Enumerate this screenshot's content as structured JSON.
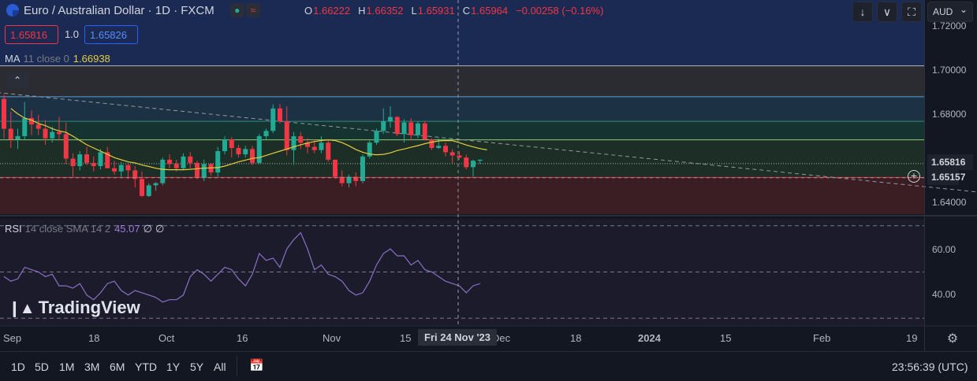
{
  "header": {
    "title": "Euro / Australian Dollar · 1D · FXCM",
    "ohlc": [
      {
        "k": "O",
        "v": "1.66222"
      },
      {
        "k": "H",
        "v": "1.66352"
      },
      {
        "k": "L",
        "v": "1.65931"
      },
      {
        "k": "C",
        "v": "1.65964"
      },
      {
        "k": "",
        "v": "−0.00258 (−0.16%)"
      }
    ],
    "sell_price": "1.65816",
    "spread": "1.0",
    "buy_price": "1.65826",
    "currency": "AUD"
  },
  "ma_legend": {
    "name": "MA",
    "params": "11 close 0",
    "value": "1.66938"
  },
  "rsi_legend": {
    "name": "RSI",
    "params": "14 close SMA 14 2",
    "value": "45.07",
    "na1": "∅",
    "na2": "∅"
  },
  "watermark": "TradingView",
  "price_axis": {
    "ticks": [
      "1.72000",
      "1.70000",
      "1.68000",
      "1.64000"
    ],
    "current_label": "1.65816",
    "cross_label": "1.65157"
  },
  "rsi_axis": {
    "ticks": [
      "60.00",
      "40.00"
    ]
  },
  "time_axis": {
    "ticks": [
      "Sep",
      "18",
      "Oct",
      "16",
      "Nov",
      "15",
      "Dec",
      "18",
      "2024",
      "15",
      "Feb",
      "19"
    ],
    "crosshair_label": "Fri 24 Nov '23"
  },
  "bottom_bar": {
    "timeframes": [
      "1D",
      "5D",
      "1M",
      "3M",
      "6M",
      "YTD",
      "1Y",
      "5Y",
      "All"
    ],
    "clock": "23:56:39 (UTC)"
  },
  "icons": [
    "flag-icon",
    "down-arrow-icon",
    "collapse-icon",
    "fullscreen-icon",
    "calendar-icon",
    "settings-icon",
    "crosshair-plus-icon",
    "chevron-up-icon"
  ],
  "colors": {
    "up": "#22ab94",
    "down": "#f23645",
    "ma": "#e4ce3e",
    "rsi": "#8b6fc4",
    "bg": "#131722"
  },
  "chart_data": [
    {
      "type": "candlestick",
      "title": "Euro / Australian Dollar · 1D · FXCM",
      "ylim": [
        1.6345,
        1.7245
      ],
      "candles": [
        {
          "o": 1.6885,
          "h": 1.6905,
          "l": 1.67,
          "c": 1.6745
        },
        {
          "o": 1.6745,
          "h": 1.6825,
          "l": 1.6655,
          "c": 1.6695
        },
        {
          "o": 1.6695,
          "h": 1.6745,
          "l": 1.665,
          "c": 1.671
        },
        {
          "o": 1.671,
          "h": 1.687,
          "l": 1.6695,
          "c": 1.6795
        },
        {
          "o": 1.6795,
          "h": 1.683,
          "l": 1.6715,
          "c": 1.6765
        },
        {
          "o": 1.6765,
          "h": 1.681,
          "l": 1.6715,
          "c": 1.6745
        },
        {
          "o": 1.6745,
          "h": 1.6785,
          "l": 1.667,
          "c": 1.67
        },
        {
          "o": 1.67,
          "h": 1.6755,
          "l": 1.668,
          "c": 1.673
        },
        {
          "o": 1.673,
          "h": 1.68,
          "l": 1.669,
          "c": 1.672
        },
        {
          "o": 1.672,
          "h": 1.6775,
          "l": 1.658,
          "c": 1.6605
        },
        {
          "o": 1.6605,
          "h": 1.663,
          "l": 1.652,
          "c": 1.657
        },
        {
          "o": 1.657,
          "h": 1.664,
          "l": 1.655,
          "c": 1.6625
        },
        {
          "o": 1.6625,
          "h": 1.666,
          "l": 1.6575,
          "c": 1.6585
        },
        {
          "o": 1.6585,
          "h": 1.6615,
          "l": 1.6545,
          "c": 1.657
        },
        {
          "o": 1.657,
          "h": 1.665,
          "l": 1.6555,
          "c": 1.6635
        },
        {
          "o": 1.6635,
          "h": 1.666,
          "l": 1.656,
          "c": 1.656
        },
        {
          "o": 1.656,
          "h": 1.6595,
          "l": 1.653,
          "c": 1.6545
        },
        {
          "o": 1.6545,
          "h": 1.659,
          "l": 1.652,
          "c": 1.6575
        },
        {
          "o": 1.6575,
          "h": 1.658,
          "l": 1.651,
          "c": 1.655
        },
        {
          "o": 1.655,
          "h": 1.657,
          "l": 1.647,
          "c": 1.651
        },
        {
          "o": 1.651,
          "h": 1.6545,
          "l": 1.6425,
          "c": 1.643
        },
        {
          "o": 1.643,
          "h": 1.649,
          "l": 1.6425,
          "c": 1.648
        },
        {
          "o": 1.648,
          "h": 1.6495,
          "l": 1.6455,
          "c": 1.649
        },
        {
          "o": 1.649,
          "h": 1.661,
          "l": 1.648,
          "c": 1.66
        },
        {
          "o": 1.66,
          "h": 1.6625,
          "l": 1.656,
          "c": 1.658
        },
        {
          "o": 1.658,
          "h": 1.66,
          "l": 1.6545,
          "c": 1.656
        },
        {
          "o": 1.656,
          "h": 1.663,
          "l": 1.6555,
          "c": 1.6615
        },
        {
          "o": 1.6615,
          "h": 1.6635,
          "l": 1.656,
          "c": 1.6585
        },
        {
          "o": 1.6585,
          "h": 1.6595,
          "l": 1.651,
          "c": 1.6515
        },
        {
          "o": 1.6515,
          "h": 1.66,
          "l": 1.65,
          "c": 1.658
        },
        {
          "o": 1.658,
          "h": 1.658,
          "l": 1.6525,
          "c": 1.654
        },
        {
          "o": 1.654,
          "h": 1.666,
          "l": 1.652,
          "c": 1.664
        },
        {
          "o": 1.664,
          "h": 1.671,
          "l": 1.6625,
          "c": 1.6695
        },
        {
          "o": 1.6695,
          "h": 1.6705,
          "l": 1.661,
          "c": 1.6655
        },
        {
          "o": 1.6655,
          "h": 1.667,
          "l": 1.661,
          "c": 1.6625
        },
        {
          "o": 1.6625,
          "h": 1.6665,
          "l": 1.661,
          "c": 1.665
        },
        {
          "o": 1.665,
          "h": 1.6665,
          "l": 1.6575,
          "c": 1.6585
        },
        {
          "o": 1.6585,
          "h": 1.672,
          "l": 1.658,
          "c": 1.671
        },
        {
          "o": 1.671,
          "h": 1.6745,
          "l": 1.669,
          "c": 1.6735
        },
        {
          "o": 1.6735,
          "h": 1.686,
          "l": 1.6725,
          "c": 1.684
        },
        {
          "o": 1.684,
          "h": 1.686,
          "l": 1.677,
          "c": 1.678
        },
        {
          "o": 1.678,
          "h": 1.685,
          "l": 1.662,
          "c": 1.6645
        },
        {
          "o": 1.6645,
          "h": 1.673,
          "l": 1.6575,
          "c": 1.671
        },
        {
          "o": 1.671,
          "h": 1.673,
          "l": 1.665,
          "c": 1.668
        },
        {
          "o": 1.668,
          "h": 1.67,
          "l": 1.663,
          "c": 1.666
        },
        {
          "o": 1.666,
          "h": 1.6695,
          "l": 1.663,
          "c": 1.6645
        },
        {
          "o": 1.6645,
          "h": 1.671,
          "l": 1.663,
          "c": 1.668
        },
        {
          "o": 1.668,
          "h": 1.669,
          "l": 1.659,
          "c": 1.66
        },
        {
          "o": 1.66,
          "h": 1.66,
          "l": 1.651,
          "c": 1.652
        },
        {
          "o": 1.652,
          "h": 1.655,
          "l": 1.6475,
          "c": 1.649
        },
        {
          "o": 1.649,
          "h": 1.653,
          "l": 1.647,
          "c": 1.652
        },
        {
          "o": 1.652,
          "h": 1.654,
          "l": 1.6475,
          "c": 1.65
        },
        {
          "o": 1.65,
          "h": 1.6625,
          "l": 1.649,
          "c": 1.6615
        },
        {
          "o": 1.6615,
          "h": 1.669,
          "l": 1.6605,
          "c": 1.668
        },
        {
          "o": 1.668,
          "h": 1.6745,
          "l": 1.667,
          "c": 1.6735
        },
        {
          "o": 1.6735,
          "h": 1.684,
          "l": 1.672,
          "c": 1.678
        },
        {
          "o": 1.678,
          "h": 1.685,
          "l": 1.675,
          "c": 1.68
        },
        {
          "o": 1.68,
          "h": 1.6805,
          "l": 1.671,
          "c": 1.672
        },
        {
          "o": 1.672,
          "h": 1.679,
          "l": 1.668,
          "c": 1.6775
        },
        {
          "o": 1.6775,
          "h": 1.6795,
          "l": 1.669,
          "c": 1.6715
        },
        {
          "o": 1.6715,
          "h": 1.678,
          "l": 1.67,
          "c": 1.677
        },
        {
          "o": 1.677,
          "h": 1.678,
          "l": 1.669,
          "c": 1.6695
        },
        {
          "o": 1.6695,
          "h": 1.67,
          "l": 1.6645,
          "c": 1.6655
        },
        {
          "o": 1.6655,
          "h": 1.67,
          "l": 1.665,
          "c": 1.6665
        },
        {
          "o": 1.6665,
          "h": 1.668,
          "l": 1.6615,
          "c": 1.6635
        },
        {
          "o": 1.6635,
          "h": 1.665,
          "l": 1.658,
          "c": 1.662
        },
        {
          "o": 1.662,
          "h": 1.664,
          "l": 1.66,
          "c": 1.661
        },
        {
          "o": 1.661,
          "h": 1.6625,
          "l": 1.6555,
          "c": 1.6565
        },
        {
          "o": 1.6565,
          "h": 1.66,
          "l": 1.652,
          "c": 1.6595
        },
        {
          "o": 1.6595,
          "h": 1.66,
          "l": 1.658,
          "c": 1.66
        }
      ],
      "ma_line": [
        1.684,
        1.6815,
        1.6795,
        1.6785,
        1.677,
        1.676,
        1.6745,
        1.6735,
        1.6728,
        1.671,
        1.669,
        1.667,
        1.6655,
        1.664,
        1.6625,
        1.661,
        1.66,
        1.659,
        1.6585,
        1.6575,
        1.6568,
        1.656,
        1.6555,
        1.6553,
        1.6553,
        1.6553,
        1.6555,
        1.6558,
        1.656,
        1.6562,
        1.6563,
        1.657,
        1.658,
        1.659,
        1.6598,
        1.6606,
        1.661,
        1.662,
        1.663,
        1.664,
        1.665,
        1.666,
        1.667,
        1.6678,
        1.6685,
        1.669,
        1.6693,
        1.669,
        1.668,
        1.6665,
        1.6648,
        1.6635,
        1.6626,
        1.6623,
        1.6625,
        1.6632,
        1.6643,
        1.665,
        1.6658,
        1.6666,
        1.6675,
        1.6682,
        1.6688,
        1.669,
        1.6689,
        1.668,
        1.6669,
        1.666,
        1.6652,
        1.6646
      ],
      "trendline": {
        "from": {
          "i": -1,
          "v": 1.6915
        },
        "to": {
          "i": 162,
          "v": 1.638
        }
      },
      "levels": [
        {
          "v": 1.704,
          "color": "#b2b5be"
        },
        {
          "v": 1.6895,
          "color": "#5b9bd5"
        },
        {
          "v": 1.678,
          "color": "#2e8b77"
        },
        {
          "v": 1.6693,
          "color": "#8fc873"
        },
        {
          "v": 1.6517,
          "color": "#f23645"
        }
      ],
      "zones": [
        {
          "from": 1.7245,
          "to": 1.704,
          "color": "#1b2a52"
        },
        {
          "from": 1.704,
          "to": 1.6895,
          "color": "#2a2c31"
        },
        {
          "from": 1.6895,
          "to": 1.678,
          "color": "#1d3144"
        },
        {
          "from": 1.678,
          "to": 1.6693,
          "color": "#153330"
        },
        {
          "from": 1.6693,
          "to": 1.6517,
          "color": "#1c2e25"
        },
        {
          "from": 1.6517,
          "to": 1.6345,
          "color": "#3b1d24"
        }
      ],
      "current_price": 1.65816,
      "crosshair_price": 1.65157
    },
    {
      "type": "line",
      "title": "RSI 14 close SMA 14 2",
      "ylim": [
        27,
        73
      ],
      "bands": [
        70,
        50,
        30
      ],
      "values": [
        48,
        46,
        47,
        52,
        51,
        50,
        48,
        49,
        44,
        44,
        43,
        45,
        40,
        38,
        41,
        45,
        46,
        42,
        40,
        42,
        41,
        40,
        39,
        37,
        38,
        38,
        40,
        48,
        51,
        49,
        46,
        49,
        52,
        51,
        47,
        44,
        49,
        58,
        55,
        56,
        52,
        60,
        64,
        67,
        60,
        51,
        53,
        49,
        48,
        46,
        42,
        40,
        41,
        46,
        53,
        58,
        60,
        57,
        57,
        53,
        55,
        51,
        50,
        48,
        46,
        45,
        44,
        41,
        44,
        45
      ]
    }
  ]
}
